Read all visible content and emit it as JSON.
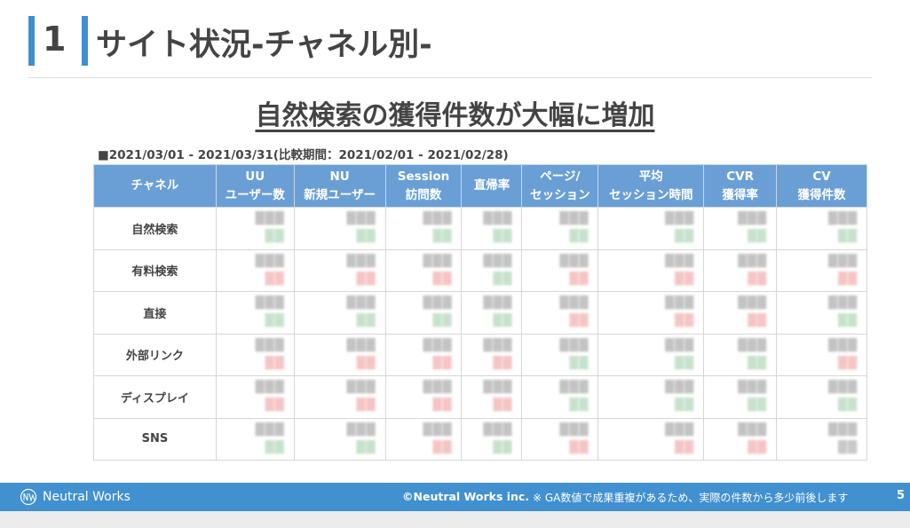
{
  "header": {
    "number": "1",
    "title": "サイト状況-チャネル別-"
  },
  "subtitle": "自然検索の獲得件数が大幅に増加",
  "period": "■2021/03/01 - 2021/03/31(比較期間：2021/02/01 - 2021/02/28)",
  "table": {
    "columns": [
      {
        "l1": "チャネル",
        "l2": ""
      },
      {
        "l1": "UU",
        "l2": "ユーザー数"
      },
      {
        "l1": "NU",
        "l2": "新規ユーザー"
      },
      {
        "l1": "Session",
        "l2": "訪問数"
      },
      {
        "l1": "直帰率",
        "l2": ""
      },
      {
        "l1": "ページ/",
        "l2": "セッション"
      },
      {
        "l1": "平均",
        "l2": "セッション時間"
      },
      {
        "l1": "CVR",
        "l2": "獲得率"
      },
      {
        "l1": "CV",
        "l2": "獲得件数"
      }
    ],
    "rows": [
      {
        "channel": "自然検索",
        "deltas": [
          "up",
          "up",
          "up",
          "up",
          "up",
          "up",
          "up",
          "up"
        ]
      },
      {
        "channel": "有料検索",
        "deltas": [
          "down",
          "down",
          "down",
          "up",
          "down",
          "down",
          "down",
          "down"
        ]
      },
      {
        "channel": "直接",
        "deltas": [
          "up",
          "up",
          "up",
          "up",
          "down",
          "down",
          "down",
          "up"
        ]
      },
      {
        "channel": "外部リンク",
        "deltas": [
          "down",
          "down",
          "down",
          "down",
          "up",
          "up",
          "up",
          "down"
        ]
      },
      {
        "channel": "ディスプレイ",
        "deltas": [
          "down",
          "down",
          "down",
          "down",
          "up",
          "up",
          "up",
          "up"
        ]
      },
      {
        "channel": "SNS",
        "deltas": [
          "up",
          "up",
          "down",
          "up",
          "down",
          "down",
          "down",
          "flat"
        ]
      }
    ]
  },
  "footer": {
    "brand": "Neutral Works",
    "copyright": "©Neutral Works inc.",
    "note": "※ GA数値で成果重複があるため、実際の件数から多少前後します",
    "page": "5"
  },
  "colors": {
    "accent": "#4190cf",
    "header_bg": "#6a9fd5",
    "up": "#5fae6f",
    "down": "#e35a5a"
  }
}
